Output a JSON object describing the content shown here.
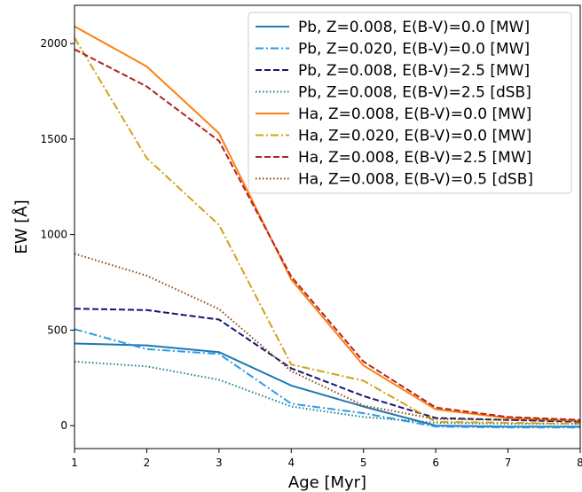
{
  "chart_data": {
    "type": "line",
    "xlabel": "Age [Myr]",
    "ylabel": "EW [Å]",
    "xlim": [
      1,
      8
    ],
    "ylim": [
      -120,
      2200
    ],
    "xticks": [
      1,
      2,
      3,
      4,
      5,
      6,
      7,
      8
    ],
    "yticks": [
      0,
      500,
      1000,
      1500,
      2000
    ],
    "grid": false,
    "legend_position": "top-right",
    "series": [
      {
        "name": "Pb, Z=0.008, E(B-V)=0.0 [MW]",
        "color": "#1f77b4",
        "dash": "solid",
        "x": [
          1,
          2,
          3,
          4,
          5,
          6,
          7,
          8
        ],
        "y": [
          430,
          420,
          385,
          210,
          100,
          0,
          -5,
          -5
        ]
      },
      {
        "name": "Pb, Z=0.020, E(B-V)=0.0 [MW]",
        "color": "#2e9be6",
        "dash": "dashdot",
        "x": [
          1,
          2,
          3,
          4,
          5,
          6,
          7,
          8
        ],
        "y": [
          505,
          400,
          375,
          115,
          65,
          -5,
          -10,
          -10
        ]
      },
      {
        "name": "Pb, Z=0.008, E(B-V)=2.5 [MW]",
        "color": "#14186e",
        "dash": "dashed",
        "x": [
          1,
          2,
          3,
          4,
          5,
          6,
          7,
          8
        ],
        "y": [
          612,
          605,
          555,
          300,
          155,
          40,
          30,
          20
        ]
      },
      {
        "name": "Pb, Z=0.008, E(B-V)=2.5 [dSB]",
        "color": "#17808e",
        "dash": "dotted",
        "x": [
          1,
          2,
          3,
          4,
          5,
          6,
          7,
          8
        ],
        "y": [
          335,
          310,
          240,
          100,
          45,
          15,
          10,
          10
        ]
      },
      {
        "name": "Ha, Z=0.008, E(B-V)=0.0 [MW]",
        "color": "#ff7f0e",
        "dash": "solid",
        "x": [
          1,
          2,
          3,
          4,
          5,
          6,
          7,
          8
        ],
        "y": [
          2090,
          1880,
          1530,
          765,
          315,
          85,
          40,
          25
        ]
      },
      {
        "name": "Ha, Z=0.020, E(B-V)=0.0 [MW]",
        "color": "#d4a017",
        "dash": "dashdot",
        "x": [
          1,
          2,
          3,
          4,
          5,
          6,
          7,
          8
        ],
        "y": [
          2030,
          1400,
          1050,
          320,
          235,
          20,
          15,
          10
        ]
      },
      {
        "name": "Ha, Z=0.008, E(B-V)=2.5 [MW]",
        "color": "#b22222",
        "dash": "dashed",
        "x": [
          1,
          2,
          3,
          4,
          5,
          6,
          7,
          8
        ],
        "y": [
          1970,
          1775,
          1490,
          780,
          335,
          95,
          45,
          30
        ]
      },
      {
        "name": "Ha, Z=0.008, E(B-V)=0.5 [dSB]",
        "color": "#8b4513",
        "dash": "dotted",
        "x": [
          1,
          2,
          3,
          4,
          5,
          6,
          7,
          8
        ],
        "y": [
          900,
          785,
          610,
          285,
          105,
          35,
          30,
          25
        ]
      }
    ]
  }
}
